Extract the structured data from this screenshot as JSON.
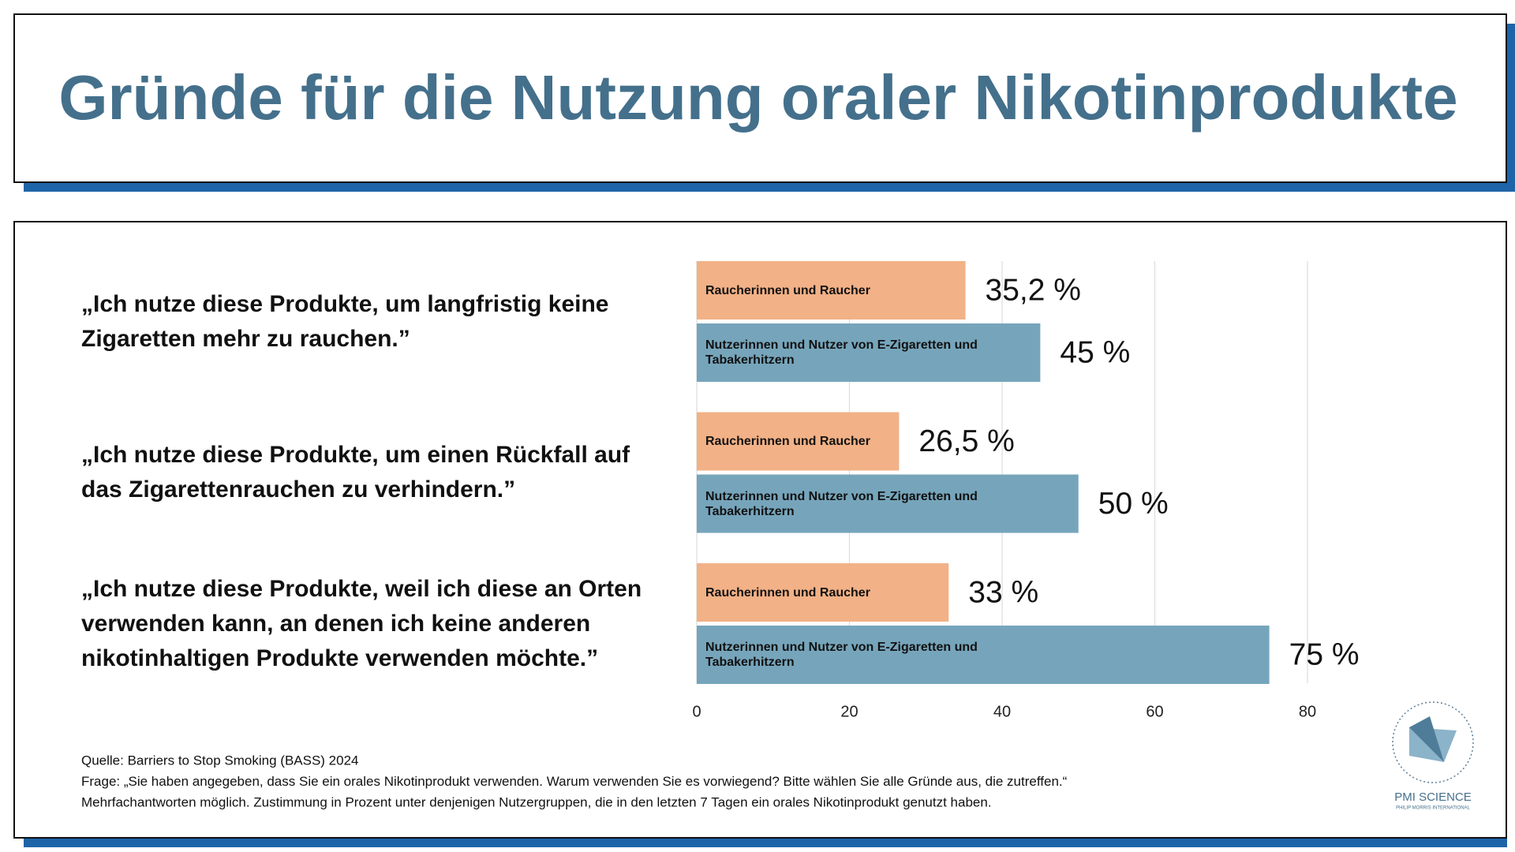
{
  "chart_data": {
    "type": "bar",
    "orientation": "horizontal",
    "title": "Gründe für die Nutzung oraler Nikotinprodukte",
    "categories": [
      "„Ich nutze diese Produkte, um langfristig keine Zigaretten mehr zu rauchen.”",
      "„Ich nutze diese Produkte, um einen Rückfall auf das Zigarettenrauchen zu verhindern.”",
      "„Ich nutze diese Produkte, weil ich diese an Orten verwenden kann, an denen ich keine anderen nikotinhaltigen Produkte verwenden möchte.”"
    ],
    "series": [
      {
        "name": "Raucherinnen und Raucher",
        "color": "#f2b186",
        "values": [
          35.2,
          26.5,
          33
        ],
        "value_labels": [
          "35,2 %",
          "26,5 %",
          "33 %"
        ]
      },
      {
        "name": "Nutzerinnen und Nutzer von E-Zigaretten und Tabakerhitzern",
        "color": "#76a5bb",
        "values": [
          45,
          50,
          75
        ],
        "value_labels": [
          "45 %",
          "50 %",
          "75 %"
        ]
      }
    ],
    "xlim": [
      0,
      80
    ],
    "xticks": [
      0,
      20,
      40,
      60,
      80
    ],
    "grid": true,
    "notes": [
      "Quelle: Barriers to Stop Smoking (BASS) 2024",
      "Frage: „Sie haben angegeben, dass Sie ein orales Nikotinprodukt verwenden. Warum verwenden Sie es vorwiegend? Bitte wählen Sie alle Gründe aus, die zutreffen.“",
      "Mehrfachantworten möglich. Zustimmung in Prozent unter denjenigen Nutzergruppen, die in den letzten 7 Tagen ein orales Nikotinprodukt genutzt haben."
    ]
  },
  "logo": {
    "title": "PMI SCIENCE",
    "subtitle": "PHILIP MORRIS INTERNATIONAL"
  }
}
